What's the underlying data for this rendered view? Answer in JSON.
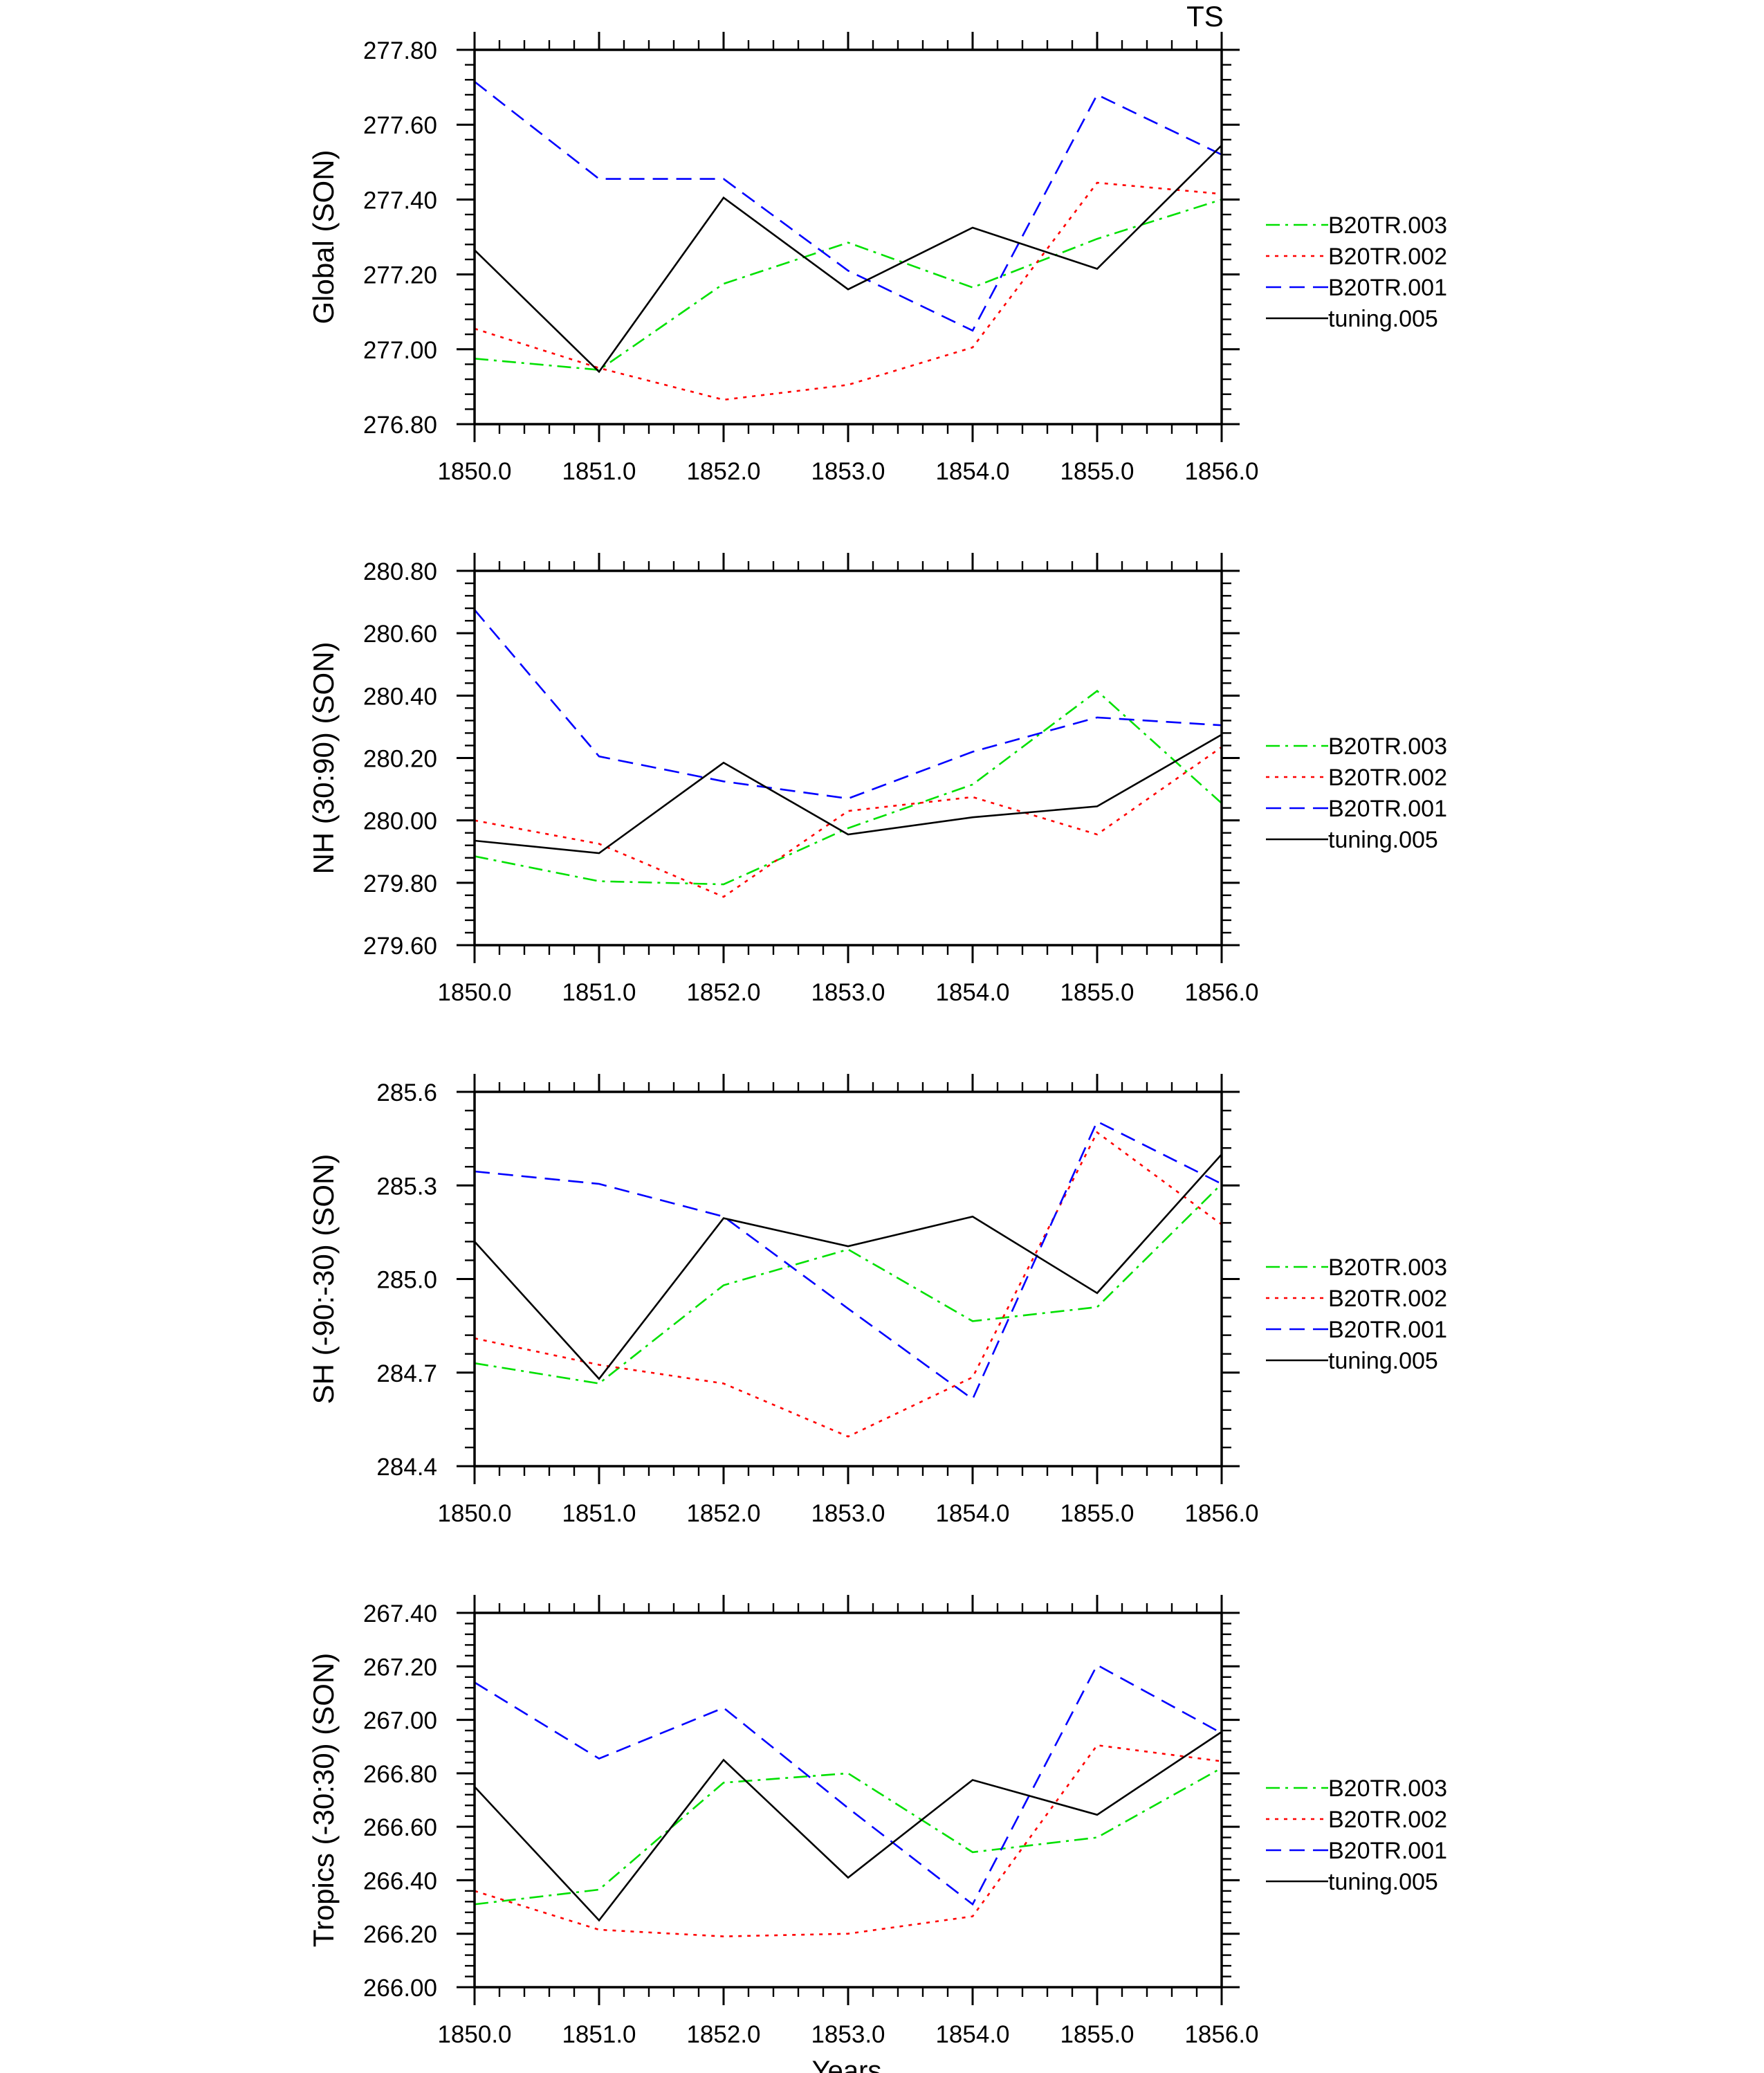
{
  "figure_title": "TS",
  "x_axis_title": "Years",
  "chart_data": [
    {
      "type": "line",
      "ylabel": "Global (SON)",
      "ylim": [
        276.8,
        277.8
      ],
      "yticks": [
        "276.80",
        "277.00",
        "277.20",
        "277.40",
        "277.60",
        "277.80"
      ],
      "xlim": [
        1850,
        1856
      ],
      "xticks": [
        "1850.0",
        "1851.0",
        "1852.0",
        "1853.0",
        "1854.0",
        "1855.0",
        "1856.0"
      ],
      "x": [
        1850,
        1851,
        1852,
        1853,
        1854,
        1855,
        1856
      ],
      "series": [
        {
          "name": "B20TR.003",
          "values": [
            276.975,
            276.945,
            277.175,
            277.285,
            277.165,
            277.295,
            277.4
          ]
        },
        {
          "name": "B20TR.002",
          "values": [
            277.055,
            276.95,
            276.865,
            276.905,
            277.005,
            277.445,
            277.415
          ]
        },
        {
          "name": "B20TR.001",
          "values": [
            277.715,
            277.455,
            277.455,
            277.21,
            277.05,
            277.68,
            277.52
          ]
        },
        {
          "name": "tuning.005",
          "values": [
            277.265,
            276.94,
            277.405,
            277.16,
            277.325,
            277.215,
            277.545
          ]
        }
      ]
    },
    {
      "type": "line",
      "ylabel": "NH (30:90) (SON)",
      "ylim": [
        279.6,
        280.8
      ],
      "yticks": [
        "279.60",
        "279.80",
        "280.00",
        "280.20",
        "280.40",
        "280.60",
        "280.80"
      ],
      "xlim": [
        1850,
        1856
      ],
      "xticks": [
        "1850.0",
        "1851.0",
        "1852.0",
        "1853.0",
        "1854.0",
        "1855.0",
        "1856.0"
      ],
      "x": [
        1850,
        1851,
        1852,
        1853,
        1854,
        1855,
        1856
      ],
      "series": [
        {
          "name": "B20TR.003",
          "values": [
            279.885,
            279.805,
            279.795,
            279.975,
            280.115,
            280.415,
            280.055
          ]
        },
        {
          "name": "B20TR.002",
          "values": [
            280.0,
            279.925,
            279.755,
            280.03,
            280.075,
            279.955,
            280.235
          ]
        },
        {
          "name": "B20TR.001",
          "values": [
            280.675,
            280.205,
            280.125,
            280.07,
            280.22,
            280.33,
            280.305
          ]
        },
        {
          "name": "tuning.005",
          "values": [
            279.935,
            279.895,
            280.185,
            279.955,
            280.01,
            280.045,
            280.275
          ]
        }
      ]
    },
    {
      "type": "line",
      "ylabel": "SH (-90:-30) (SON)",
      "ylim": [
        284.4,
        285.6
      ],
      "yticks": [
        "284.4",
        "284.7",
        "285.0",
        "285.3",
        "285.6"
      ],
      "xlim": [
        1850,
        1856
      ],
      "xticks": [
        "1850.0",
        "1851.0",
        "1852.0",
        "1853.0",
        "1854.0",
        "1855.0",
        "1856.0"
      ],
      "x": [
        1850,
        1851,
        1852,
        1853,
        1854,
        1855,
        1856
      ],
      "series": [
        {
          "name": "B20TR.003",
          "values": [
            284.73,
            284.665,
            284.98,
            285.095,
            284.865,
            284.91,
            285.305
          ]
        },
        {
          "name": "B20TR.002",
          "values": [
            284.81,
            284.725,
            284.665,
            284.495,
            284.685,
            285.47,
            285.175
          ]
        },
        {
          "name": "B20TR.001",
          "values": [
            285.345,
            285.305,
            285.2,
            284.905,
            284.615,
            285.505,
            285.305
          ]
        },
        {
          "name": "tuning.005",
          "values": [
            285.12,
            284.68,
            285.195,
            285.105,
            285.2,
            284.955,
            285.4
          ]
        }
      ]
    },
    {
      "type": "line",
      "ylabel": "Tropics (-30:30) (SON)",
      "ylim": [
        266.0,
        267.4
      ],
      "yticks": [
        "266.00",
        "266.20",
        "266.40",
        "266.60",
        "266.80",
        "267.00",
        "267.20",
        "267.40"
      ],
      "xlim": [
        1850,
        1856
      ],
      "xticks": [
        "1850.0",
        "1851.0",
        "1852.0",
        "1853.0",
        "1854.0",
        "1855.0",
        "1856.0"
      ],
      "x": [
        1850,
        1851,
        1852,
        1853,
        1854,
        1855,
        1856
      ],
      "series": [
        {
          "name": "B20TR.003",
          "values": [
            266.31,
            266.365,
            266.765,
            266.8,
            266.505,
            266.56,
            266.82
          ]
        },
        {
          "name": "B20TR.002",
          "values": [
            266.36,
            266.215,
            266.19,
            266.2,
            266.265,
            266.905,
            266.845
          ]
        },
        {
          "name": "B20TR.001",
          "values": [
            267.14,
            266.855,
            267.045,
            266.67,
            266.31,
            267.205,
            266.95
          ]
        },
        {
          "name": "tuning.005",
          "values": [
            266.75,
            266.25,
            266.85,
            266.41,
            266.775,
            266.645,
            266.955
          ]
        }
      ]
    }
  ],
  "series_styles": [
    {
      "name": "B20TR.003",
      "color": "#00e000",
      "dash": "dashdot"
    },
    {
      "name": "B20TR.002",
      "color": "#ff0000",
      "dash": "dot"
    },
    {
      "name": "B20TR.001",
      "color": "#0000ff",
      "dash": "dash"
    },
    {
      "name": "tuning.005",
      "color": "#000000",
      "dash": "solid"
    }
  ]
}
